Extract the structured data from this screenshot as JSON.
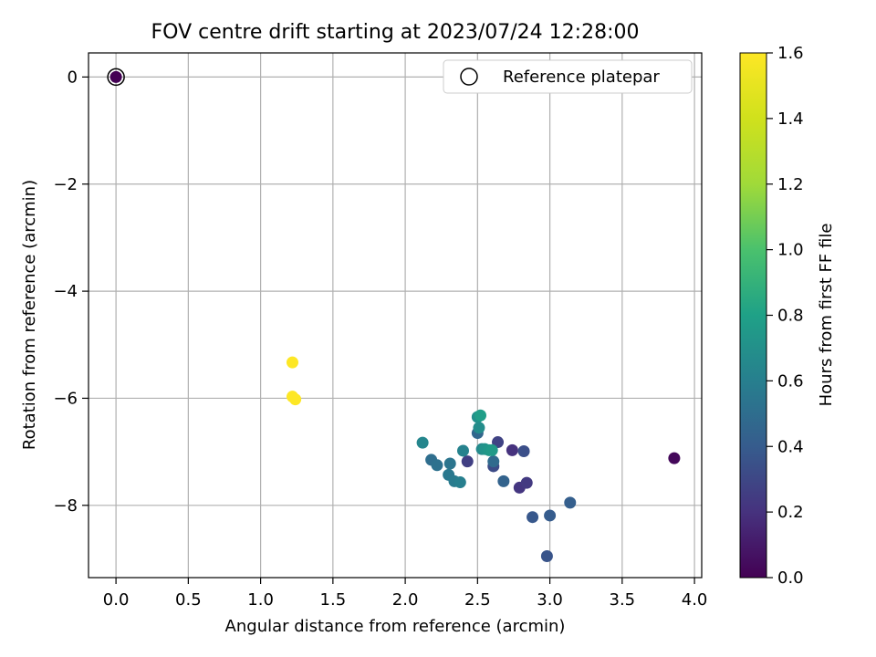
{
  "chart_data": {
    "type": "scatter",
    "title": "FOV centre drift starting at 2023/07/24 12:28:00",
    "xlabel": "Angular distance from reference (arcmin)",
    "ylabel": "Rotation from reference (arcmin)",
    "xlim": [
      -0.19,
      4.05
    ],
    "ylim": [
      -9.35,
      0.45
    ],
    "x_ticks": [
      0.0,
      0.5,
      1.0,
      1.5,
      2.0,
      2.5,
      3.0,
      3.5,
      4.0
    ],
    "x_tick_labels": [
      "0.0",
      "0.5",
      "1.0",
      "1.5",
      "2.0",
      "2.5",
      "3.0",
      "3.5",
      "4.0"
    ],
    "y_ticks": [
      0,
      -2,
      -4,
      -6,
      -8
    ],
    "y_tick_labels": [
      "0",
      "−2",
      "−4",
      "−6",
      "−8"
    ],
    "grid": true,
    "legend": {
      "placement": "top-right",
      "entries": [
        "Reference platepar"
      ]
    },
    "reference_point": {
      "x": 0.0,
      "y": 0.0
    },
    "colorbar": {
      "label": "Hours from first FF file",
      "colormap": "viridis",
      "range": [
        0.0,
        1.6
      ],
      "ticks": [
        0.0,
        0.2,
        0.4,
        0.6,
        0.8,
        1.0,
        1.2,
        1.4,
        1.6
      ],
      "tick_labels": [
        "0.0",
        "0.2",
        "0.4",
        "0.6",
        "0.8",
        "1.0",
        "1.2",
        "1.4",
        "1.6"
      ]
    },
    "points": [
      {
        "x": 0.0,
        "y": 0.0,
        "c": 0.0
      },
      {
        "x": 3.86,
        "y": -7.12,
        "c": 0.03
      },
      {
        "x": 2.74,
        "y": -6.97,
        "c": 0.2
      },
      {
        "x": 2.79,
        "y": -7.67,
        "c": 0.22
      },
      {
        "x": 2.84,
        "y": -7.58,
        "c": 0.24
      },
      {
        "x": 2.43,
        "y": -7.18,
        "c": 0.26
      },
      {
        "x": 2.64,
        "y": -6.82,
        "c": 0.28
      },
      {
        "x": 2.61,
        "y": -7.27,
        "c": 0.32
      },
      {
        "x": 2.82,
        "y": -6.99,
        "c": 0.34
      },
      {
        "x": 2.98,
        "y": -8.95,
        "c": 0.36
      },
      {
        "x": 2.88,
        "y": -8.22,
        "c": 0.38
      },
      {
        "x": 3.0,
        "y": -8.19,
        "c": 0.4
      },
      {
        "x": 3.14,
        "y": -7.95,
        "c": 0.42
      },
      {
        "x": 2.68,
        "y": -7.55,
        "c": 0.44
      },
      {
        "x": 2.5,
        "y": -6.65,
        "c": 0.46
      },
      {
        "x": 2.61,
        "y": -7.18,
        "c": 0.48
      },
      {
        "x": 2.18,
        "y": -7.15,
        "c": 0.5
      },
      {
        "x": 2.22,
        "y": -7.25,
        "c": 0.52
      },
      {
        "x": 2.31,
        "y": -7.22,
        "c": 0.54
      },
      {
        "x": 2.3,
        "y": -7.43,
        "c": 0.56
      },
      {
        "x": 2.34,
        "y": -7.55,
        "c": 0.58
      },
      {
        "x": 2.38,
        "y": -7.57,
        "c": 0.6
      },
      {
        "x": 2.4,
        "y": -6.98,
        "c": 0.62
      },
      {
        "x": 2.12,
        "y": -6.83,
        "c": 0.64
      },
      {
        "x": 2.53,
        "y": -6.95,
        "c": 0.66
      },
      {
        "x": 2.51,
        "y": -6.55,
        "c": 0.68
      },
      {
        "x": 2.5,
        "y": -6.35,
        "c": 0.7
      },
      {
        "x": 2.55,
        "y": -6.95,
        "c": 0.72
      },
      {
        "x": 2.58,
        "y": -6.97,
        "c": 0.74
      },
      {
        "x": 2.6,
        "y": -6.97,
        "c": 0.76
      },
      {
        "x": 2.52,
        "y": -6.32,
        "c": 0.78
      },
      {
        "x": 1.22,
        "y": -5.33,
        "c": 1.6
      },
      {
        "x": 1.22,
        "y": -5.97,
        "c": 1.6
      },
      {
        "x": 1.24,
        "y": -6.02,
        "c": 1.6
      }
    ]
  }
}
